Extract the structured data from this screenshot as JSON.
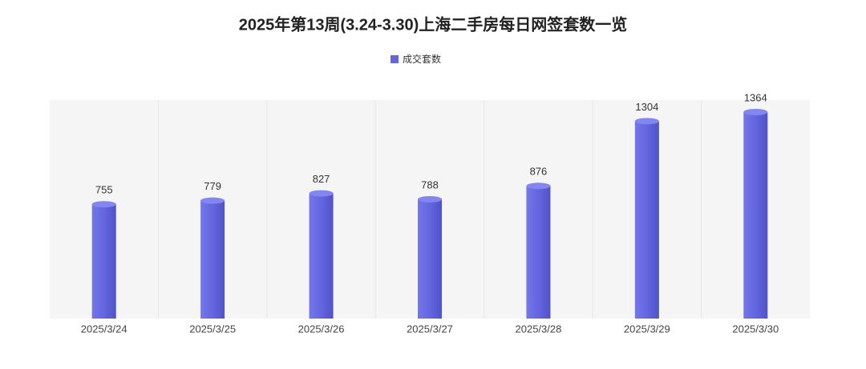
{
  "chart_data": {
    "type": "bar",
    "title": "2025年第13周(3.24-3.30)上海二手房每日网签套数一览",
    "categories": [
      "2025/3/24",
      "2025/3/25",
      "2025/3/26",
      "2025/3/27",
      "2025/3/28",
      "2025/3/29",
      "2025/3/30"
    ],
    "series": [
      {
        "name": "成交套数",
        "color": "#6466e0",
        "values": [
          755,
          779,
          827,
          788,
          876,
          1304,
          1364
        ]
      }
    ]
  }
}
